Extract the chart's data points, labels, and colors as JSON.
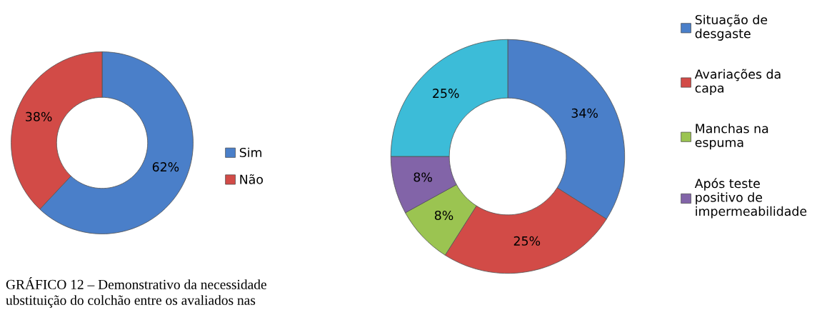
{
  "chart_data": [
    {
      "type": "donut",
      "categories": [
        "Sim",
        "Não"
      ],
      "values": [
        62,
        38
      ],
      "colors": [
        "#4a7fc9",
        "#d24b47"
      ],
      "value_labels": [
        "62%",
        "38%"
      ],
      "legend": "right",
      "annotations": [
        "GRÁFICO 12 – Demonstrativo da necessidade",
        "ubstituição do colchão entre os avaliados nas"
      ]
    },
    {
      "type": "donut",
      "categories": [
        "Situação de desgaste",
        "Avariações da capa",
        "Manchas na espuma",
        "Após teste positivo de impermeabilidade",
        null
      ],
      "values": [
        34,
        25,
        8,
        8,
        25
      ],
      "colors": [
        "#4a7fc9",
        "#d24b47",
        "#9bc451",
        "#8264a8",
        "#3cbcd8"
      ],
      "value_labels": [
        "34%",
        "25%",
        "8%",
        "8%",
        "25%"
      ],
      "legend": "right"
    }
  ]
}
